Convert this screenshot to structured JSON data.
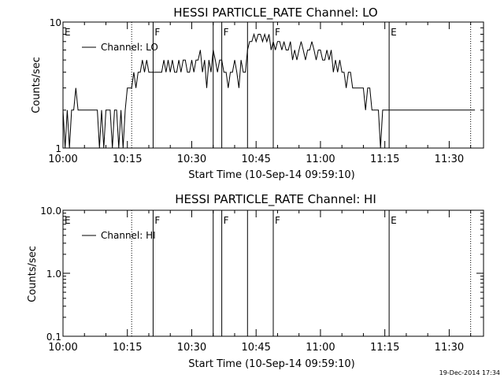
{
  "footer": {
    "timestamp": "19-Dec-2014 17:34"
  },
  "chart_data": [
    {
      "type": "line",
      "title": "HESSI PARTICLE_RATE Channel: LO",
      "xlabel": "Start Time (10-Sep-14 09:59:10)",
      "ylabel": "Counts/sec",
      "y_scale": "log",
      "xlim": [
        "10:00",
        "11:38"
      ],
      "ylim": [
        1,
        10
      ],
      "x_ticks": [
        "10:00",
        "10:15",
        "10:30",
        "10:45",
        "11:00",
        "11:15",
        "11:30"
      ],
      "y_ticks": [
        "1",
        "10"
      ],
      "legend": {
        "position": "top-left",
        "entries": [
          "Channel: LO"
        ]
      },
      "grid": false,
      "markers": [
        {
          "label": "E",
          "time": "10:00",
          "style": "none"
        },
        {
          "label": "",
          "time": "10:16",
          "style": "dotted"
        },
        {
          "label": "F",
          "time": "10:21",
          "style": "solid"
        },
        {
          "label": "",
          "time": "10:35",
          "style": "solid"
        },
        {
          "label": "F",
          "time": "10:37",
          "style": "solid"
        },
        {
          "label": "",
          "time": "10:43",
          "style": "solid"
        },
        {
          "label": "F",
          "time": "10:49",
          "style": "solid"
        },
        {
          "label": "E",
          "time": "11:16",
          "style": "solid"
        },
        {
          "label": "",
          "time": "11:35",
          "style": "dotted"
        }
      ],
      "series": [
        {
          "name": "Channel: LO",
          "x_minutes_after_10_00": [
            0,
            0.5,
            1,
            1.5,
            2,
            2.5,
            3,
            3.5,
            4,
            4.5,
            5,
            5.5,
            6,
            6.5,
            7,
            7.5,
            8,
            8.5,
            9,
            9.5,
            10,
            10.5,
            11,
            11.5,
            12,
            12.5,
            13,
            13.5,
            14,
            14.5,
            15,
            15.5,
            16,
            16.5,
            17,
            17.5,
            18,
            18.5,
            19,
            19.5,
            20,
            20.5,
            21,
            21.5,
            22,
            22.5,
            23,
            23.5,
            24,
            24.5,
            25,
            25.5,
            26,
            26.5,
            27,
            27.5,
            28,
            28.5,
            29,
            29.5,
            30,
            30.5,
            31,
            31.5,
            32,
            32.5,
            33,
            33.5,
            34,
            34.5,
            35,
            35.5,
            36,
            36.5,
            37,
            37.5,
            38,
            38.5,
            39,
            39.5,
            40,
            40.5,
            41,
            41.5,
            42,
            42.5,
            43,
            43.5,
            44,
            44.5,
            45,
            45.5,
            46,
            46.5,
            47,
            47.5,
            48,
            48.5,
            49,
            49.5,
            50,
            50.5,
            51,
            51.5,
            52,
            52.5,
            53,
            53.5,
            54,
            54.5,
            55,
            55.5,
            56,
            56.5,
            57,
            57.5,
            58,
            58.5,
            59,
            59.5,
            60,
            60.5,
            61,
            61.5,
            62,
            62.5,
            63,
            63.5,
            64,
            64.5,
            65,
            65.5,
            66,
            66.5,
            67,
            67.5,
            68,
            68.5,
            69,
            69.5,
            70,
            70.5,
            71,
            71.5,
            72,
            72.5,
            73,
            73.5,
            74,
            74.5,
            75,
            75.5,
            76,
            76.5,
            77,
            77.5,
            78,
            78.5,
            79,
            79.5,
            80,
            80.5,
            81,
            81.5,
            82,
            82.5,
            83,
            83.5,
            84,
            84.5,
            85,
            85.5,
            86,
            86.5,
            87,
            87.5,
            88,
            88.5,
            89,
            89.5,
            90,
            90.5,
            91,
            91.5,
            92,
            92.5,
            93,
            93.5,
            94,
            94.5,
            95,
            95.5,
            96
          ],
          "values": [
            2,
            1,
            2,
            1,
            2,
            2,
            3,
            2,
            2,
            2,
            2,
            2,
            2,
            2,
            2,
            2,
            2,
            1,
            2,
            1,
            2,
            2,
            2,
            1,
            2,
            2,
            1,
            2,
            1,
            2,
            3,
            3,
            3,
            4,
            3,
            4,
            4,
            5,
            4,
            5,
            4,
            4,
            4,
            4,
            4,
            4,
            4,
            5,
            4,
            5,
            4,
            5,
            4,
            4,
            5,
            4,
            5,
            5,
            4,
            4,
            5,
            4,
            5,
            5,
            6,
            4,
            5,
            3,
            5,
            4,
            6,
            5,
            4,
            5,
            5,
            4,
            4,
            3,
            4,
            4,
            5,
            4,
            3,
            5,
            4,
            4,
            6,
            7,
            7,
            8,
            7,
            8,
            8,
            7,
            8,
            7,
            8,
            6,
            7,
            6,
            7,
            7,
            6,
            7,
            6,
            6,
            7,
            5,
            6,
            5,
            6,
            7,
            6,
            5,
            6,
            6,
            7,
            6,
            5,
            6,
            6,
            5,
            5,
            6,
            5,
            6,
            4,
            5,
            4,
            5,
            4,
            4,
            3,
            4,
            4,
            3,
            3,
            3,
            3,
            3,
            3,
            2,
            3,
            3,
            2,
            2,
            2,
            2,
            1,
            2,
            2,
            2,
            2,
            2,
            2,
            2,
            2,
            2,
            2,
            2,
            2,
            2,
            2,
            2,
            2,
            2,
            2,
            2,
            2,
            2,
            2,
            2,
            2,
            2,
            2,
            2,
            2,
            2,
            2,
            2,
            2,
            2,
            2,
            2,
            2,
            2,
            2,
            2,
            2,
            2,
            2,
            2,
            2,
            2,
            2,
            2
          ]
        }
      ]
    },
    {
      "type": "line",
      "title": "HESSI PARTICLE_RATE Channel: HI",
      "xlabel": "Start Time (10-Sep-14 09:59:10)",
      "ylabel": "Counts/sec",
      "y_scale": "log",
      "xlim": [
        "10:00",
        "11:38"
      ],
      "ylim": [
        0.1,
        10.0
      ],
      "x_ticks": [
        "10:00",
        "10:15",
        "10:30",
        "10:45",
        "11:00",
        "11:15",
        "11:30"
      ],
      "y_ticks": [
        "0.1",
        "1.0",
        "10.0"
      ],
      "legend": {
        "position": "top-left",
        "entries": [
          "Channel: HI"
        ]
      },
      "grid": false,
      "markers": [
        {
          "label": "E",
          "time": "10:00",
          "style": "none"
        },
        {
          "label": "",
          "time": "10:16",
          "style": "dotted"
        },
        {
          "label": "F",
          "time": "10:21",
          "style": "solid"
        },
        {
          "label": "",
          "time": "10:35",
          "style": "solid"
        },
        {
          "label": "F",
          "time": "10:37",
          "style": "solid"
        },
        {
          "label": "",
          "time": "10:43",
          "style": "solid"
        },
        {
          "label": "F",
          "time": "10:49",
          "style": "solid"
        },
        {
          "label": "E",
          "time": "11:16",
          "style": "solid"
        },
        {
          "label": "",
          "time": "11:35",
          "style": "dotted"
        }
      ],
      "series": [
        {
          "name": "Channel: HI",
          "values": []
        }
      ]
    }
  ]
}
